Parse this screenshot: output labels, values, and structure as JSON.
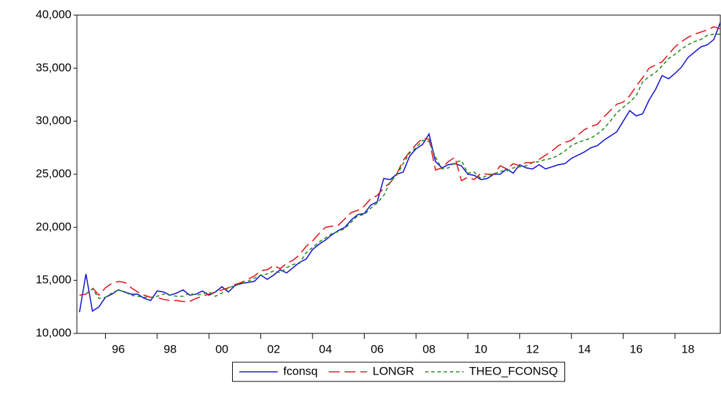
{
  "chart_data": {
    "type": "line",
    "x": [
      1995,
      1995.25,
      1995.5,
      1995.75,
      1996,
      1996.25,
      1996.5,
      1996.75,
      1997,
      1997.25,
      1997.5,
      1997.75,
      1998,
      1998.25,
      1998.5,
      1998.75,
      1999,
      1999.25,
      1999.5,
      1999.75,
      2000,
      2000.25,
      2000.5,
      2000.75,
      2001,
      2001.25,
      2001.5,
      2001.75,
      2002,
      2002.25,
      2002.5,
      2002.75,
      2003,
      2003.25,
      2003.5,
      2003.75,
      2004,
      2004.25,
      2004.5,
      2004.75,
      2005,
      2005.25,
      2005.5,
      2005.75,
      2006,
      2006.25,
      2006.5,
      2006.75,
      2007,
      2007.25,
      2007.5,
      2007.75,
      2008,
      2008.25,
      2008.5,
      2008.75,
      2009,
      2009.25,
      2009.5,
      2009.75,
      2010,
      2010.25,
      2010.5,
      2010.75,
      2011,
      2011.25,
      2011.5,
      2011.75,
      2012,
      2012.25,
      2012.5,
      2012.75,
      2013,
      2013.25,
      2013.5,
      2013.75,
      2014,
      2014.25,
      2014.5,
      2014.75,
      2015,
      2015.25,
      2015.5,
      2015.75,
      2016,
      2016.25,
      2016.5,
      2016.75,
      2017,
      2017.25,
      2017.5,
      2017.75,
      2018,
      2018.25,
      2018.5,
      2018.75,
      2019,
      2019.25,
      2019.5,
      2019.75
    ],
    "series": [
      {
        "name": "fconsq",
        "color": "#1414d2",
        "dash": "none",
        "values": [
          12000,
          15600,
          12100,
          12500,
          13400,
          13700,
          14100,
          13900,
          13700,
          13700,
          13300,
          13100,
          14000,
          13900,
          13600,
          13800,
          14100,
          13600,
          13700,
          14000,
          13600,
          13900,
          14400,
          13900,
          14500,
          14700,
          14800,
          14900,
          15500,
          15100,
          15500,
          16000,
          15700,
          16200,
          16700,
          17000,
          17900,
          18400,
          18800,
          19300,
          19700,
          20000,
          20700,
          21200,
          21300,
          22100,
          22400,
          24600,
          24500,
          25000,
          25200,
          26700,
          27400,
          27800,
          28800,
          26200,
          25600,
          25900,
          26000,
          25800,
          25000,
          24900,
          24500,
          24600,
          25000,
          25000,
          25500,
          25100,
          25900,
          25600,
          25500,
          25900,
          25500,
          25700,
          25900,
          26000,
          26500,
          26800,
          27100,
          27500,
          27700,
          28200,
          28600,
          29000,
          30000,
          31000,
          30500,
          30700,
          32000,
          33000,
          34300,
          34000,
          34500,
          35100,
          36000,
          36500,
          37000,
          37200,
          37700,
          39300
        ]
      },
      {
        "name": "LONGR",
        "color": "#e0141a",
        "dash": "16,7",
        "values": [
          13600,
          13700,
          14300,
          13600,
          14300,
          14700,
          14900,
          14800,
          14300,
          13900,
          13600,
          13400,
          13400,
          13200,
          13100,
          13100,
          13000,
          13000,
          13300,
          13500,
          13700,
          13900,
          14100,
          14300,
          14600,
          14800,
          15100,
          15400,
          15900,
          16000,
          16400,
          16100,
          16600,
          16900,
          17400,
          18200,
          18700,
          19400,
          20000,
          20100,
          20200,
          20800,
          21400,
          21600,
          22000,
          22700,
          23000,
          23700,
          24200,
          25000,
          26300,
          27100,
          27800,
          28400,
          28300,
          25400,
          25600,
          26200,
          26600,
          24400,
          24700,
          24500,
          25100,
          25000,
          25000,
          25800,
          25500,
          26000,
          25800,
          26100,
          26100,
          26400,
          26800,
          27200,
          27700,
          28000,
          28200,
          28700,
          29200,
          29500,
          29700,
          30400,
          31000,
          31600,
          31800,
          32400,
          33300,
          34100,
          35000,
          35300,
          35600,
          36300,
          37000,
          37500,
          37900,
          38200,
          38400,
          38600,
          38900,
          38700
        ]
      },
      {
        "name": "THEO_FCONSQ",
        "color": "#1e8c1e",
        "dash": "5,4",
        "values": [
          null,
          13700,
          14200,
          13300,
          13400,
          13800,
          14100,
          13900,
          13600,
          13500,
          13400,
          13400,
          13500,
          13700,
          13600,
          13500,
          13500,
          13800,
          13600,
          13700,
          13900,
          13500,
          13800,
          14300,
          14500,
          14700,
          14900,
          15200,
          15500,
          15600,
          15900,
          15700,
          16200,
          16500,
          16600,
          17600,
          18100,
          18600,
          19000,
          19400,
          19600,
          19900,
          20500,
          21100,
          21200,
          21800,
          22300,
          23000,
          24300,
          24900,
          26000,
          27000,
          27500,
          28200,
          28100,
          26600,
          25500,
          25600,
          26100,
          26300,
          25100,
          25200,
          24600,
          24900,
          25000,
          25300,
          25300,
          25600,
          25700,
          25800,
          26100,
          26200,
          26400,
          26500,
          26800,
          27200,
          27700,
          28000,
          28200,
          28400,
          28800,
          29300,
          30000,
          30800,
          31300,
          31800,
          32400,
          33700,
          34200,
          34600,
          35200,
          35900,
          36300,
          36800,
          37200,
          37500,
          37700,
          38100,
          38200,
          38200
        ]
      }
    ],
    "xlim": [
      1994.9,
      2019.75
    ],
    "xticks": [
      {
        "value": 1996,
        "label": "96"
      },
      {
        "value": 1998,
        "label": "98"
      },
      {
        "value": 2000,
        "label": "00"
      },
      {
        "value": 2002,
        "label": "02"
      },
      {
        "value": 2004,
        "label": "04"
      },
      {
        "value": 2006,
        "label": "06"
      },
      {
        "value": 2008,
        "label": "08"
      },
      {
        "value": 2010,
        "label": "10"
      },
      {
        "value": 2012,
        "label": "12"
      },
      {
        "value": 2014,
        "label": "14"
      },
      {
        "value": 2016,
        "label": "16"
      },
      {
        "value": 2018,
        "label": "18"
      }
    ],
    "ylim": [
      10000,
      40000
    ],
    "yticks": [
      {
        "value": 10000,
        "label": "10,000"
      },
      {
        "value": 15000,
        "label": "15,000"
      },
      {
        "value": 20000,
        "label": "20,000"
      },
      {
        "value": 25000,
        "label": "25,000"
      },
      {
        "value": 30000,
        "label": "30,000"
      },
      {
        "value": 35000,
        "label": "35,000"
      },
      {
        "value": 40000,
        "label": "40,000"
      }
    ],
    "grid": false
  }
}
